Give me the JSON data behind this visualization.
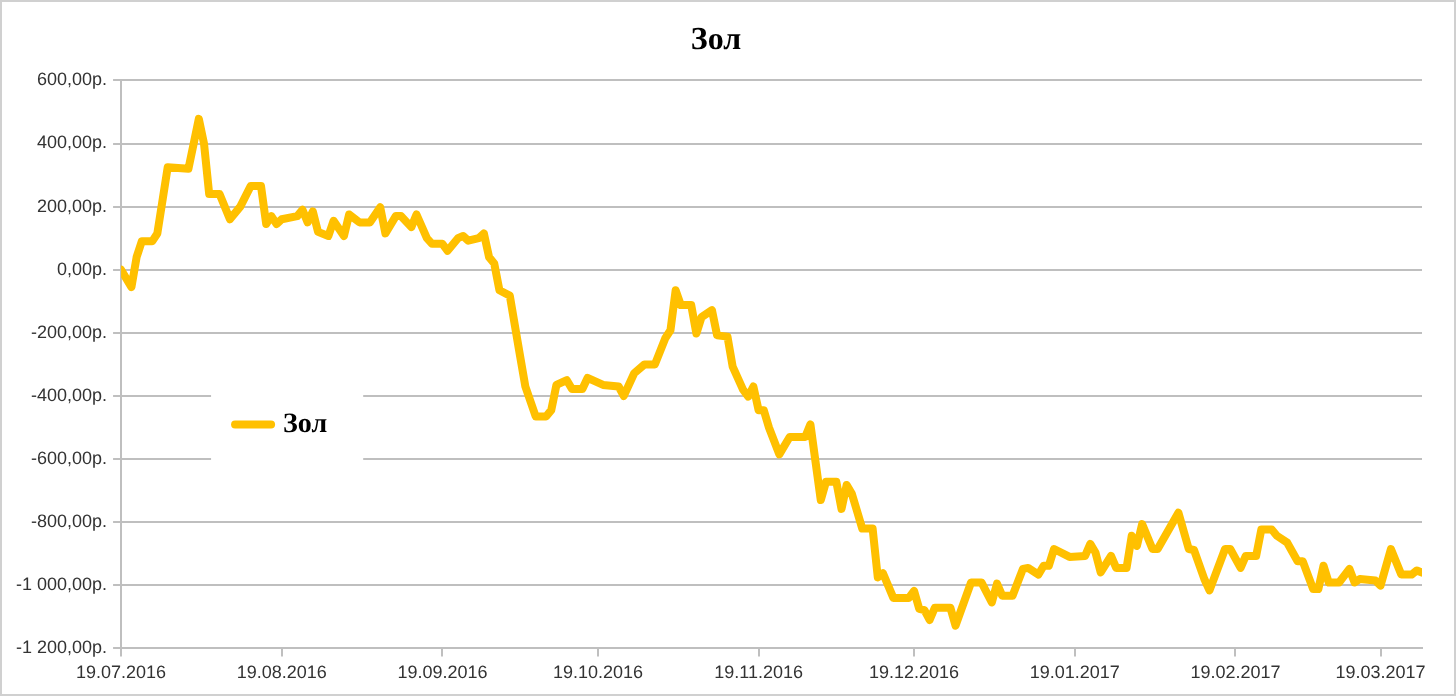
{
  "chart_data": {
    "type": "line",
    "title": "Зол",
    "x": [
      "2016-07-19",
      "2016-07-21",
      "2016-07-22",
      "2016-07-23",
      "2016-07-25",
      "2016-07-26",
      "2016-07-28",
      "2016-08-01",
      "2016-08-03",
      "2016-08-04",
      "2016-08-05",
      "2016-08-07",
      "2016-08-09",
      "2016-08-11",
      "2016-08-13",
      "2016-08-15",
      "2016-08-16",
      "2016-08-17",
      "2016-08-18",
      "2016-08-19",
      "2016-08-22",
      "2016-08-23",
      "2016-08-24",
      "2016-08-25",
      "2016-08-26",
      "2016-08-28",
      "2016-08-29",
      "2016-08-31",
      "2016-09-01",
      "2016-09-03",
      "2016-09-05",
      "2016-09-07",
      "2016-09-08",
      "2016-09-10",
      "2016-09-11",
      "2016-09-13",
      "2016-09-14",
      "2016-09-16",
      "2016-09-17",
      "2016-09-19",
      "2016-09-20",
      "2016-09-22",
      "2016-09-23",
      "2016-09-24",
      "2016-09-26",
      "2016-09-27",
      "2016-09-28",
      "2016-09-29",
      "2016-09-30",
      "2016-10-02",
      "2016-10-04",
      "2016-10-05",
      "2016-10-07",
      "2016-10-09",
      "2016-10-10",
      "2016-10-11",
      "2016-10-13",
      "2016-10-14",
      "2016-10-16",
      "2016-10-17",
      "2016-10-20",
      "2016-10-23",
      "2016-10-24",
      "2016-10-26",
      "2016-10-28",
      "2016-10-30",
      "2016-11-01",
      "2016-11-02",
      "2016-11-03",
      "2016-11-04",
      "2016-11-06",
      "2016-11-07",
      "2016-11-08",
      "2016-11-10",
      "2016-11-11",
      "2016-11-13",
      "2016-11-14",
      "2016-11-16",
      "2016-11-17",
      "2016-11-18",
      "2016-11-19",
      "2016-11-20",
      "2016-11-21",
      "2016-11-23",
      "2016-11-25",
      "2016-11-28",
      "2016-11-29",
      "2016-12-01",
      "2016-12-02",
      "2016-12-04",
      "2016-12-05",
      "2016-12-06",
      "2016-12-07",
      "2016-12-09",
      "2016-12-11",
      "2016-12-12",
      "2016-12-13",
      "2016-12-15",
      "2016-12-18",
      "2016-12-19",
      "2016-12-20",
      "2016-12-21",
      "2016-12-22",
      "2016-12-23",
      "2016-12-26",
      "2016-12-27",
      "2016-12-30",
      "2017-01-01",
      "2017-01-03",
      "2017-01-04",
      "2017-01-05",
      "2017-01-07",
      "2017-01-09",
      "2017-01-10",
      "2017-01-12",
      "2017-01-13",
      "2017-01-14",
      "2017-01-15",
      "2017-01-18",
      "2017-01-21",
      "2017-01-22",
      "2017-01-23",
      "2017-01-24",
      "2017-01-26",
      "2017-01-27",
      "2017-01-29",
      "2017-01-30",
      "2017-01-31",
      "2017-02-01",
      "2017-02-03",
      "2017-02-04",
      "2017-02-08",
      "2017-02-10",
      "2017-02-11",
      "2017-02-13",
      "2017-02-14",
      "2017-02-17",
      "2017-02-18",
      "2017-02-20",
      "2017-02-21",
      "2017-02-23",
      "2017-02-24",
      "2017-02-26",
      "2017-02-27",
      "2017-03-01",
      "2017-03-03",
      "2017-03-04",
      "2017-03-06",
      "2017-03-07",
      "2017-03-08",
      "2017-03-09",
      "2017-03-11",
      "2017-03-13",
      "2017-03-14",
      "2017-03-15",
      "2017-03-18",
      "2017-03-19",
      "2017-03-21",
      "2017-03-23",
      "2017-03-25",
      "2017-03-26",
      "2017-03-27"
    ],
    "series": [
      {
        "name": "Зол",
        "color": "#ffc000",
        "values": [
          0,
          -55,
          40,
          90,
          90,
          115,
          325,
          320,
          478,
          400,
          240,
          240,
          160,
          200,
          265,
          265,
          145,
          170,
          145,
          160,
          170,
          190,
          150,
          185,
          120,
          107,
          155,
          107,
          175,
          150,
          150,
          198,
          115,
          170,
          170,
          135,
          175,
          100,
          82,
          82,
          60,
          100,
          107,
          92,
          100,
          115,
          40,
          20,
          -65,
          -82,
          -275,
          -370,
          -465,
          -465,
          -445,
          -365,
          -350,
          -378,
          -378,
          -343,
          -365,
          -370,
          -400,
          -328,
          -300,
          -300,
          -217,
          -192,
          -65,
          -112,
          -112,
          -202,
          -150,
          -128,
          -208,
          -212,
          -307,
          -380,
          -402,
          -370,
          -445,
          -445,
          -500,
          -585,
          -530,
          -530,
          -490,
          -730,
          -672,
          -672,
          -758,
          -682,
          -710,
          -820,
          -820,
          -975,
          -962,
          -1040,
          -1040,
          -1018,
          -1075,
          -1079,
          -1110,
          -1071,
          -1071,
          -1128,
          -991,
          -991,
          -1054,
          -995,
          -1033,
          -1033,
          -948,
          -945,
          -966,
          -938,
          -938,
          -885,
          -910,
          -907,
          -869,
          -896,
          -959,
          -907,
          -945,
          -945,
          -843,
          -875,
          -806,
          -885,
          -885,
          -770,
          -885,
          -888,
          -980,
          -1016,
          -885,
          -885,
          -945,
          -907,
          -907,
          -823,
          -823,
          -843,
          -865,
          -924,
          -924,
          -1012,
          -1012,
          -938,
          -991,
          -991,
          -948,
          -991,
          -980,
          -985,
          -1001,
          -885,
          -966,
          -966,
          -953,
          -960
        ]
      }
    ],
    "xlim": [
      "2016-07-19",
      "2017-03-27"
    ],
    "xticks": [
      {
        "value": "2016-07-19",
        "label": "19.07.2016"
      },
      {
        "value": "2016-08-19",
        "label": "19.08.2016"
      },
      {
        "value": "2016-09-19",
        "label": "19.09.2016"
      },
      {
        "value": "2016-10-19",
        "label": "19.10.2016"
      },
      {
        "value": "2016-11-19",
        "label": "19.11.2016"
      },
      {
        "value": "2016-12-19",
        "label": "19.12.2016"
      },
      {
        "value": "2017-01-19",
        "label": "19.01.2017"
      },
      {
        "value": "2017-02-19",
        "label": "19.02.2017"
      },
      {
        "value": "2017-03-19",
        "label": "19.03.2017"
      }
    ],
    "ylim": [
      -1200,
      600
    ],
    "yticks": [
      {
        "value": -1200,
        "label": "-1 200,00р."
      },
      {
        "value": -1000,
        "label": "-1 000,00р."
      },
      {
        "value": -800,
        "label": "-800,00р."
      },
      {
        "value": -600,
        "label": "-600,00р."
      },
      {
        "value": -400,
        "label": "-400,00р."
      },
      {
        "value": -200,
        "label": "-200,00р."
      },
      {
        "value": 0,
        "label": "0,00р."
      },
      {
        "value": 200,
        "label": "200,00р."
      },
      {
        "value": 400,
        "label": "400,00р."
      },
      {
        "value": 600,
        "label": "600,00р."
      }
    ],
    "grid": "y",
    "legend": "left",
    "marker": "none",
    "line_style": "solid"
  }
}
